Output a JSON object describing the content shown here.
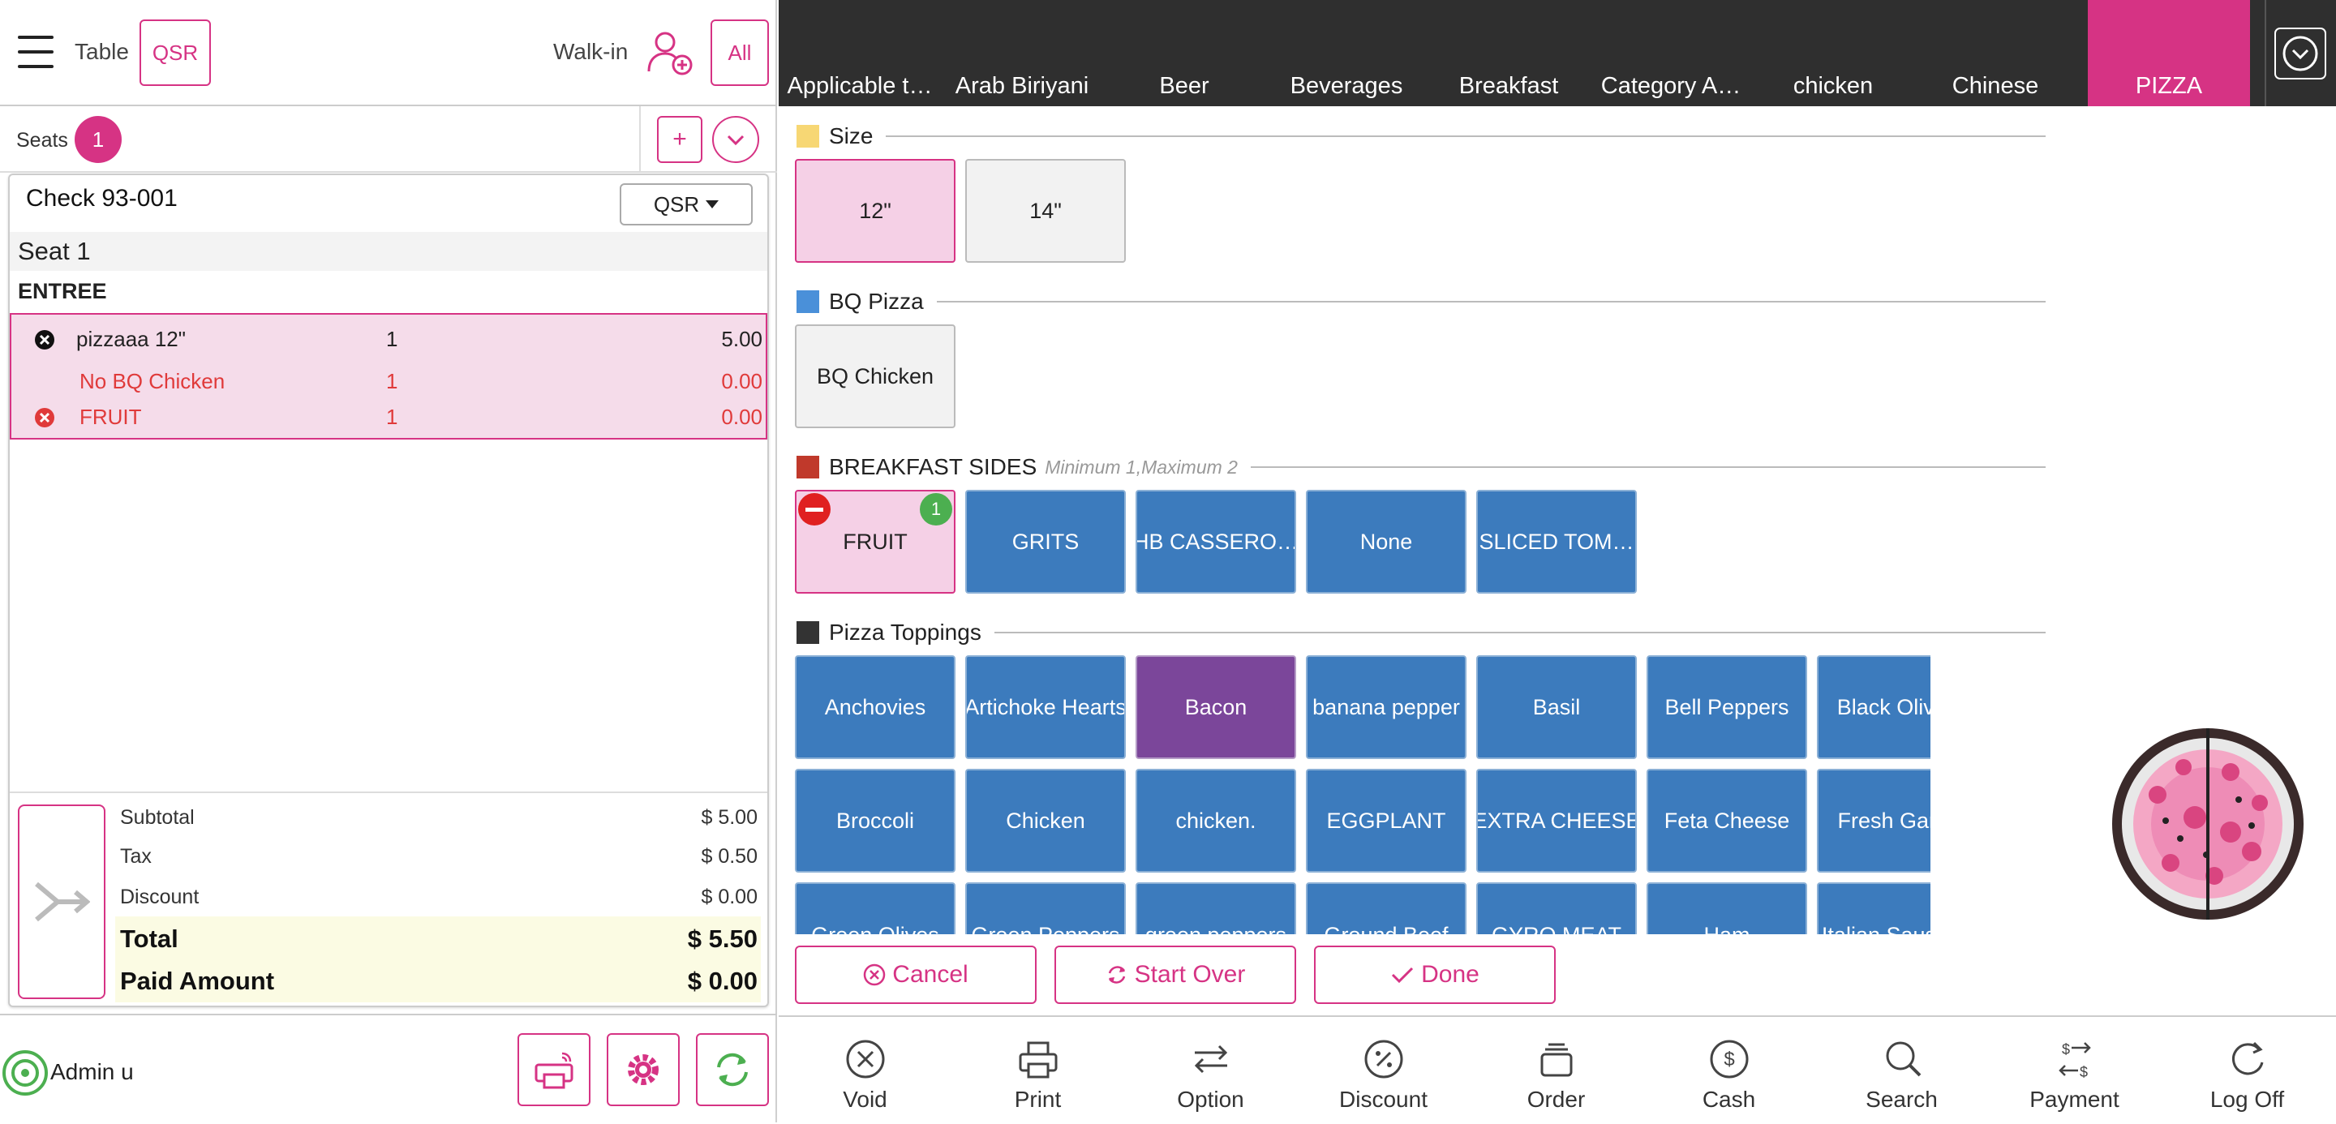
{
  "header": {
    "table_label": "Table",
    "qsr_label": "QSR",
    "walkin_label": "Walk-in",
    "all_label": "All"
  },
  "seats": {
    "label": "Seats",
    "count": "1",
    "add_label": "+"
  },
  "check": {
    "title": "Check 93-001",
    "mode": "QSR",
    "seat": "Seat 1",
    "course": "ENTREE",
    "items": [
      {
        "name": "pizzaaa 12\"",
        "qty": "1",
        "price": "5.00"
      },
      {
        "name": "No BQ Chicken",
        "qty": "1",
        "price": "0.00"
      },
      {
        "name": "FRUIT",
        "qty": "1",
        "price": "0.00"
      }
    ]
  },
  "totals": {
    "subtotal_label": "Subtotal",
    "subtotal": "$ 5.00",
    "tax_label": "Tax",
    "tax": "$ 0.50",
    "discount_label": "Discount",
    "discount": "$ 0.00",
    "total_label": "Total",
    "total": "$ 5.50",
    "paid_label": "Paid Amount",
    "paid": "$ 0.00"
  },
  "footer": {
    "user": "Admin u"
  },
  "categories": [
    "Applicable t…",
    "Arab Biriyani",
    "Beer",
    "Beverages",
    "Breakfast",
    "Category A…",
    "chicken",
    "Chinese",
    "PIZZA"
  ],
  "sections": {
    "size": {
      "title": "Size",
      "color": "#f7d774",
      "options": [
        "12\"",
        "14\""
      ]
    },
    "bq": {
      "title": "BQ Pizza",
      "color": "#4a90d9",
      "options": [
        "BQ Chicken"
      ]
    },
    "sides": {
      "title": "BREAKFAST SIDES",
      "note": "Minimum 1,Maximum 2",
      "color": "#c0392b",
      "options": [
        "FRUIT",
        "GRITS",
        "HB CASSERO…",
        "None",
        "SLICED TOM…"
      ],
      "fruit_badge": "1"
    },
    "toppings": {
      "title": "Pizza Toppings",
      "color": "#333333",
      "row1": [
        "Anchovies",
        "Artichoke Hearts",
        "Bacon",
        "banana pepper",
        "Basil",
        "Bell Peppers",
        "Black Olives"
      ],
      "row2": [
        "Broccoli",
        "Chicken",
        "chicken.",
        "EGGPLANT",
        "EXTRA CHEESE",
        "Feta Cheese",
        "Fresh Garlic"
      ],
      "row3": [
        "Green Olives",
        "Green Peppers",
        "green peppers",
        "Ground Beef",
        "GYRO MEAT",
        "Ham",
        "Italian Sausage"
      ]
    }
  },
  "actions": {
    "cancel": "Cancel",
    "start_over": "Start Over",
    "done": "Done"
  },
  "toolbar": [
    "Void",
    "Print",
    "Option",
    "Discount",
    "Order",
    "Cash",
    "Search",
    "Payment",
    "Log Off"
  ],
  "colors": {
    "accent": "#d63384",
    "tile_blue": "#3c7bbd",
    "tile_purple": "#7b469a",
    "dark_bar": "#2f2f2f"
  }
}
